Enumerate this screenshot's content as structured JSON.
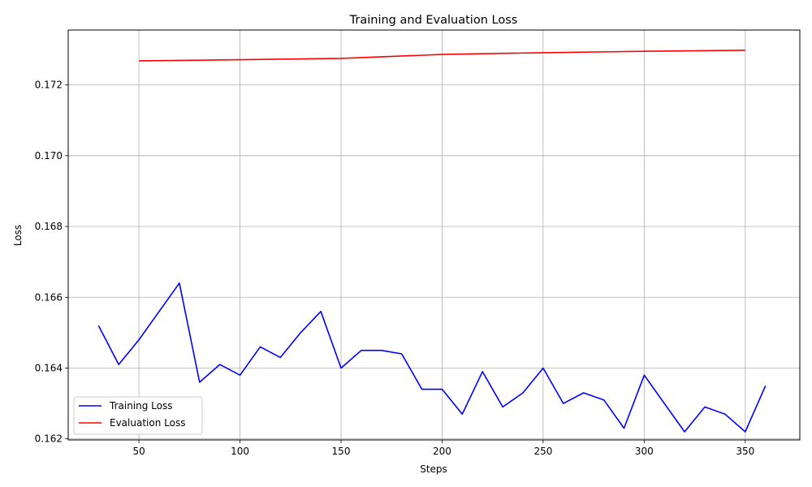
{
  "chart_data": {
    "type": "line",
    "title": "Training and Evaluation Loss",
    "xlabel": "Steps",
    "ylabel": "Loss",
    "xlim": [
      15,
      377
    ],
    "ylim": [
      0.16197,
      0.17355
    ],
    "xticks": [
      50,
      100,
      150,
      200,
      250,
      300,
      350
    ],
    "yticks": [
      0.162,
      0.164,
      0.166,
      0.168,
      0.17,
      0.172
    ],
    "ytick_labels": [
      "0.162",
      "0.164",
      "0.166",
      "0.168",
      "0.170",
      "0.172"
    ],
    "grid": true,
    "legend_position": "lower-left",
    "series": [
      {
        "name": "Training Loss",
        "color": "#0000ff",
        "x": [
          30,
          40,
          50,
          60,
          70,
          80,
          90,
          100,
          110,
          120,
          130,
          140,
          150,
          160,
          170,
          180,
          190,
          200,
          210,
          220,
          230,
          240,
          250,
          260,
          270,
          280,
          290,
          300,
          310,
          320,
          330,
          340,
          350,
          360
        ],
        "y": [
          0.1652,
          0.1641,
          0.1648,
          0.1656,
          0.1664,
          0.1636,
          0.1641,
          0.1638,
          0.1646,
          0.1643,
          0.165,
          0.1656,
          0.164,
          0.1645,
          0.1645,
          0.1644,
          0.1634,
          0.1634,
          0.1627,
          0.1639,
          0.1629,
          0.1633,
          0.164,
          0.163,
          0.1633,
          0.1631,
          0.1623,
          0.1638,
          0.163,
          0.1622,
          0.1629,
          0.1627,
          0.1622,
          0.1635
        ]
      },
      {
        "name": "Evaluation Loss",
        "color": "#ff0000",
        "x": [
          50,
          100,
          150,
          200,
          250,
          300,
          350
        ],
        "y": [
          0.17268,
          0.17271,
          0.17275,
          0.17286,
          0.17291,
          0.17295,
          0.17298
        ]
      }
    ]
  }
}
